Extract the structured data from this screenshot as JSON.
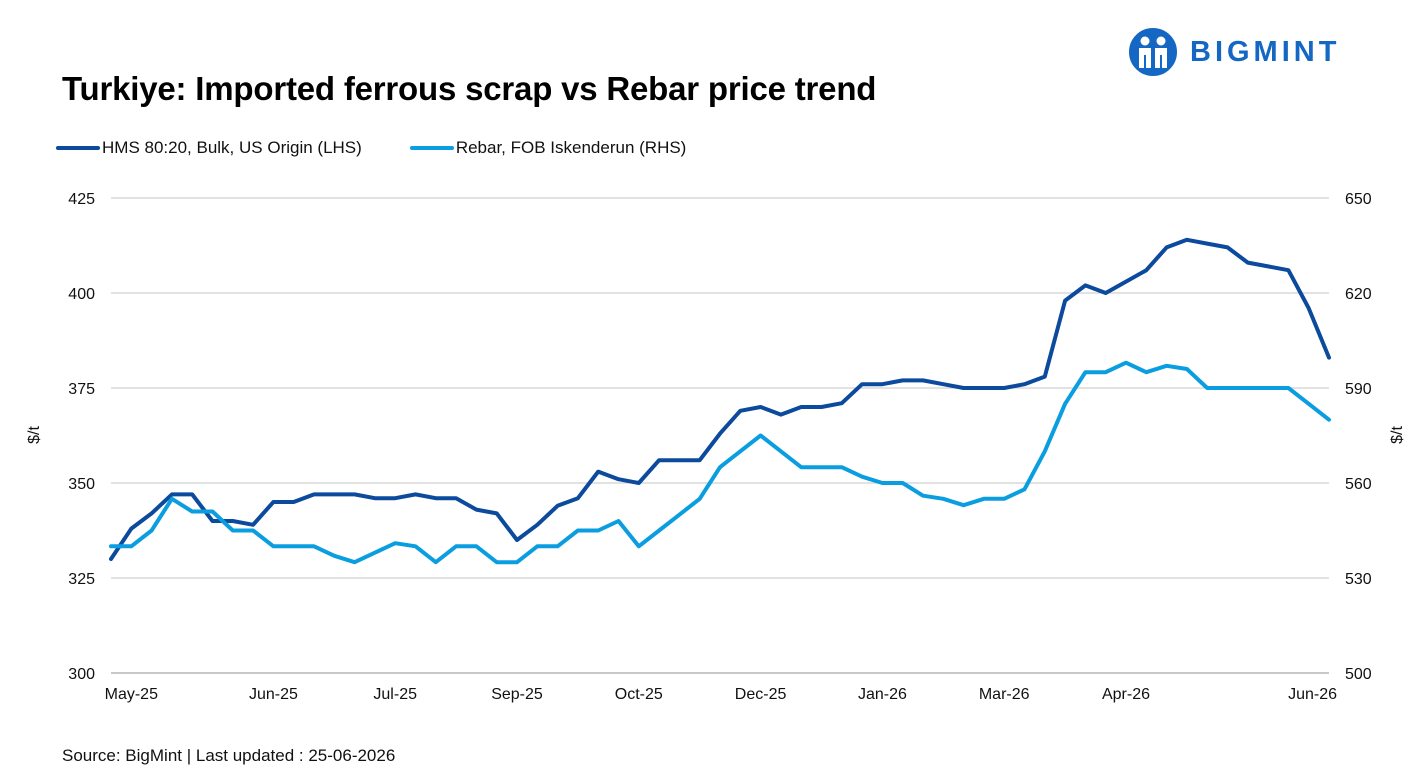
{
  "header": {
    "title": "Turkiye: Imported ferrous scrap vs Rebar price trend",
    "logo_text": "BIGMINT",
    "logo_color": "#1467c3"
  },
  "footer": {
    "source": "Source: BigMint | Last updated : 25-06-2026"
  },
  "chart_data": {
    "type": "line",
    "title": "Turkiye: Imported ferrous scrap vs Rebar price trend",
    "ylabel_left": "$/t",
    "ylabel_right": "$/t",
    "ylim_left": [
      300,
      425
    ],
    "ylim_right": [
      500,
      650
    ],
    "yticks_left": [
      "425",
      "400",
      "375",
      "350",
      "325",
      "300"
    ],
    "yticks_right": [
      "650",
      "620",
      "590",
      "560",
      "530",
      "500"
    ],
    "grid": true,
    "legend_position": "top-left",
    "x_tick_labels": [
      {
        "label": "May-25",
        "index": 1
      },
      {
        "label": "Jun-25",
        "index": 8
      },
      {
        "label": "Jul-25",
        "index": 14
      },
      {
        "label": "Sep-25",
        "index": 20
      },
      {
        "label": "Oct-25",
        "index": 26
      },
      {
        "label": "Dec-25",
        "index": 32
      },
      {
        "label": "Jan-26",
        "index": 38
      },
      {
        "label": "Mar-26",
        "index": 44
      },
      {
        "label": "Apr-26",
        "index": 50
      },
      {
        "label": "Jun-26",
        "index": 56
      }
    ],
    "series": [
      {
        "name": "HMS 80:20, Bulk, US Origin (LHS)",
        "axis": "left",
        "color": "#0b4a9c",
        "values": [
          330,
          338,
          342,
          347,
          347,
          340,
          340,
          339,
          345,
          345,
          347,
          347,
          347,
          346,
          346,
          347,
          346,
          346,
          343,
          342,
          335,
          339,
          344,
          346,
          353,
          351,
          350,
          356,
          356,
          356,
          363,
          369,
          370,
          368,
          370,
          370,
          371,
          376,
          376,
          377,
          377,
          376,
          375,
          375,
          375,
          376,
          378,
          398,
          402,
          400,
          403,
          406,
          412,
          414,
          413,
          412,
          408,
          407,
          406,
          396,
          383
        ]
      },
      {
        "name": "Rebar, FOB Iskenderun (RHS)",
        "axis": "right",
        "color": "#0a9ee0",
        "values": [
          540,
          540,
          545,
          555,
          551,
          551,
          545,
          545,
          540,
          540,
          540,
          537,
          535,
          538,
          541,
          540,
          535,
          540,
          540,
          535,
          535,
          540,
          540,
          545,
          545,
          548,
          540,
          545,
          550,
          555,
          565,
          570,
          575,
          570,
          565,
          565,
          565,
          562,
          560,
          560,
          556,
          555,
          553,
          555,
          555,
          558,
          570,
          585,
          595,
          595,
          598,
          595,
          597,
          596,
          590,
          590,
          590,
          590,
          590,
          585,
          580
        ]
      }
    ]
  }
}
